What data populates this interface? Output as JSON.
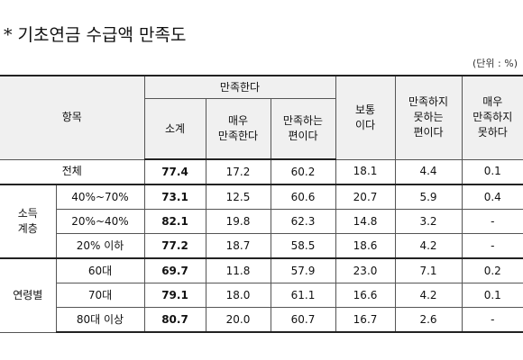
{
  "title": "* 기초연금 수급액 만족도",
  "unit": "(단위 : %)",
  "table": {
    "item_header": "항목",
    "satisfied_header": "만족한다",
    "satisfied_sub": [
      "소계",
      "매우\n만족한다",
      "만족하는\n편이다"
    ],
    "other_headers": [
      "보통\n이다",
      "만족하지\n못하는\n편이다",
      "매우\n만족하지\n못하다"
    ],
    "total": {
      "label": "전체",
      "values": [
        "77.4",
        "17.2",
        "60.2",
        "18.1",
        "4.4",
        "0.1"
      ]
    },
    "groups": [
      {
        "name": "소득\n계층",
        "rows": [
          {
            "label": "40%~70%",
            "values": [
              "73.1",
              "12.5",
              "60.6",
              "20.7",
              "5.9",
              "0.4"
            ]
          },
          {
            "label": "20%~40%",
            "values": [
              "82.1",
              "19.8",
              "62.3",
              "14.8",
              "3.2",
              "-"
            ]
          },
          {
            "label": "20% 이하",
            "values": [
              "77.2",
              "18.7",
              "58.5",
              "18.6",
              "4.2",
              "-"
            ]
          }
        ]
      },
      {
        "name": "연령별",
        "rows": [
          {
            "label": "60대",
            "values": [
              "69.7",
              "11.8",
              "57.9",
              "23.0",
              "7.1",
              "0.2"
            ]
          },
          {
            "label": "70대",
            "values": [
              "79.1",
              "18.0",
              "61.1",
              "16.6",
              "4.2",
              "0.1"
            ]
          },
          {
            "label": "80대 이상",
            "values": [
              "80.7",
              "20.0",
              "60.7",
              "16.7",
              "2.6",
              "-"
            ]
          }
        ]
      }
    ]
  }
}
